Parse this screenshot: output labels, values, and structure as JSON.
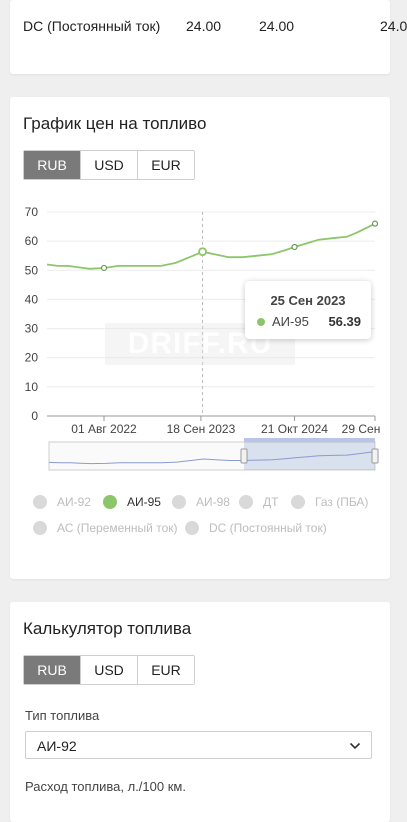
{
  "top_row": {
    "label": "DC (Постоянный ток)",
    "values": [
      "24.00",
      "24.00",
      "24.0"
    ]
  },
  "price_chart": {
    "title": "График цен на топливо",
    "currency_tabs": [
      "RUB",
      "USD",
      "EUR"
    ],
    "active_currency": "RUB",
    "watermark": "DRIFF.RU",
    "tooltip": {
      "date": "25 Сен 2023",
      "series": "АИ-95",
      "value": "56.39"
    },
    "legend": [
      {
        "label": "АИ-92",
        "active": false
      },
      {
        "label": "АИ-95",
        "active": true
      },
      {
        "label": "АИ-98",
        "active": false
      },
      {
        "label": "ДТ",
        "active": false
      },
      {
        "label": "Газ (ПБА)",
        "active": false
      },
      {
        "label": "АС (Переменный ток)",
        "active": false
      },
      {
        "label": "DC (Постоянный ток)",
        "active": false
      }
    ]
  },
  "calculator": {
    "title": "Калькулятор топлива",
    "currency_tabs": [
      "RUB",
      "USD",
      "EUR"
    ],
    "active_currency": "RUB",
    "fuel_type_label": "Тип топлива",
    "fuel_type_value": "АИ-92",
    "consumption_label": "Расход топлива, л./100 км."
  },
  "chart_data": {
    "type": "line",
    "ylim": [
      0,
      70
    ],
    "yticks": [
      0,
      10,
      20,
      30,
      40,
      50,
      60,
      70
    ],
    "xtick_labels": [
      "01 Авг 2022",
      "18 Сен 2023",
      "21 Окт 2024",
      "29 Сен"
    ],
    "series": [
      {
        "name": "АИ-95",
        "color": "#8dc66a",
        "x": [
          "2021-12-01",
          "2022-01-15",
          "2022-03-01",
          "2022-04-15",
          "2022-06-01",
          "2022-08-01",
          "2022-10-01",
          "2022-12-01",
          "2023-02-01",
          "2023-04-01",
          "2023-06-01",
          "2023-08-01",
          "2023-09-25",
          "2023-11-15",
          "2024-01-15",
          "2024-03-15",
          "2024-05-15",
          "2024-07-15",
          "2024-09-15",
          "2024-10-21",
          "2024-12-01",
          "2025-02-01",
          "2025-04-01",
          "2025-06-01",
          "2025-07-15",
          "2025-09-29"
        ],
        "values": [
          52.0,
          51.5,
          51.5,
          51.0,
          50.5,
          50.8,
          51.5,
          51.5,
          51.5,
          51.5,
          52.5,
          54.5,
          56.39,
          55.5,
          54.5,
          54.5,
          55.0,
          55.5,
          57.0,
          58.0,
          59.0,
          60.5,
          61.0,
          61.5,
          63.0,
          66.0
        ]
      }
    ]
  }
}
